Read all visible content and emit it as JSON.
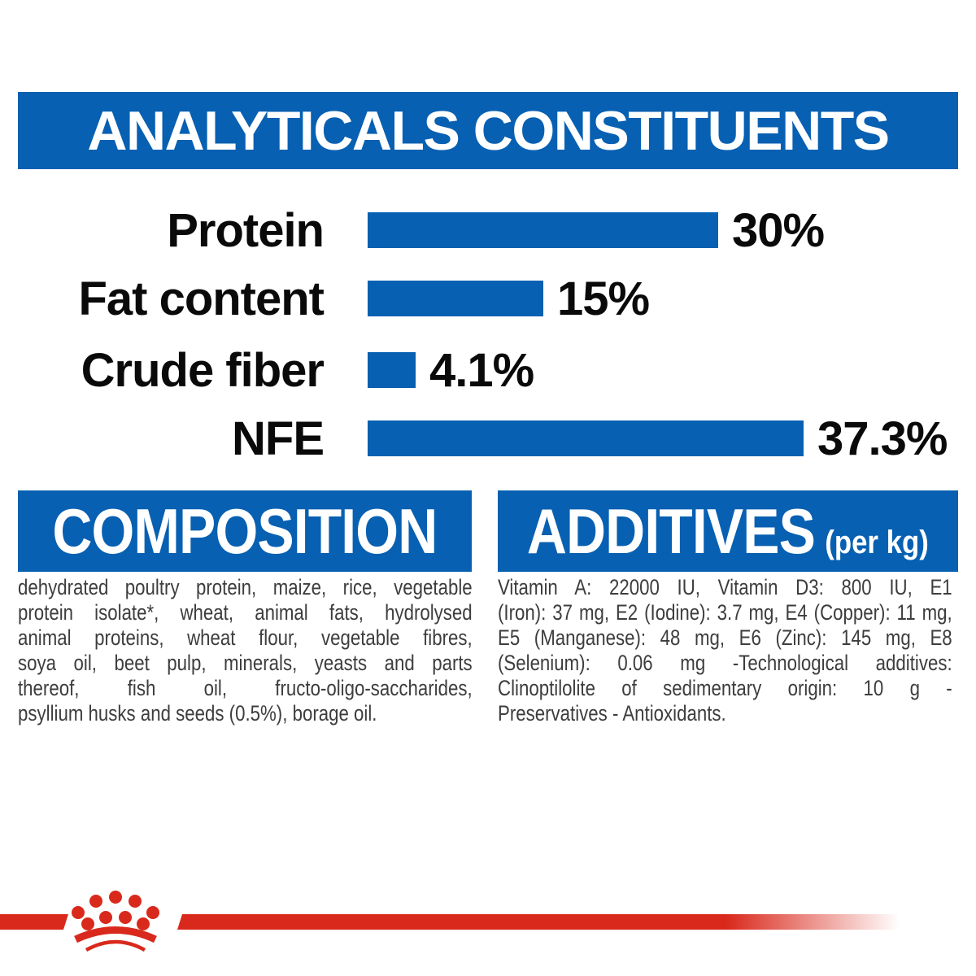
{
  "header": {
    "title": "ANALYTICALS CONSTITUENTS"
  },
  "chart_data": {
    "type": "bar",
    "orientation": "horizontal",
    "title": "ANALYTICALS CONSTITUENTS",
    "categories": [
      "Protein",
      "Fat content",
      "Crude fiber",
      "NFE"
    ],
    "values": [
      30,
      15,
      4.1,
      37.3
    ],
    "value_labels": [
      "30%",
      "15%",
      "4.1%",
      "37.3%"
    ],
    "unit": "%",
    "xlim": [
      0,
      40
    ],
    "grid": false,
    "legend": "none",
    "bar_color": "#0760B2",
    "label_color": "#0a0a0a"
  },
  "composition": {
    "title": "COMPOSITION",
    "lines": [
      "dehydrated poultry protein, maize, rice, vegetable",
      "protein isolate*, wheat, animal fats, hydrolysed",
      "animal proteins, wheat flour, vegetable fibres,",
      "soya oil, beet pulp, minerals, yeasts and parts",
      "thereof, fish oil, fructo-oligo-saccharides,",
      "psyllium husks and seeds (0.5%), borage oil."
    ]
  },
  "additives": {
    "title": "ADDITIVES",
    "title_suffix": "(per kg)",
    "lines": [
      "Vitamin A: 22000 IU, Vitamin D3: 800 IU, E1",
      "(Iron): 37 mg, E2 (Iodine): 3.7 mg, E4 (Copper): 11 mg,",
      "E5 (Manganese): 48 mg, E6 (Zinc): 145 mg, E8",
      "(Selenium): 0.06 mg -Technological additives:",
      "Clinoptilolite of sedimentary origin: 10 g -",
      "Preservatives - Antioxidants."
    ]
  },
  "footer": {
    "logo": "royal-canin-crown",
    "band_color": "#D9291C"
  },
  "colors": {
    "blue": "#0760B2",
    "red": "#D9291C",
    "body_text": "#3D3D3D"
  }
}
